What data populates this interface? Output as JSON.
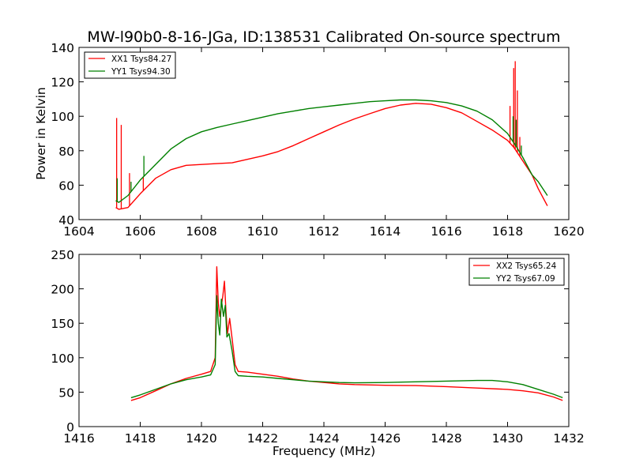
{
  "chart_data": [
    {
      "type": "line",
      "title": "MW-l90b0-8-16-JGa, ID:138531 Calibrated On-source spectrum",
      "xlabel": "",
      "ylabel": "Power in Kelvin",
      "xlim": [
        1604,
        1620
      ],
      "ylim": [
        40,
        140
      ],
      "x_ticks": [
        "1604",
        "1606",
        "1608",
        "1610",
        "1612",
        "1614",
        "1616",
        "1618",
        "1620"
      ],
      "y_ticks": [
        "40",
        "60",
        "80",
        "100",
        "120",
        "140"
      ],
      "grid": false,
      "legend_position": "top-left",
      "series": [
        {
          "name": "XX1 Tsys84.27",
          "color": "#ff0000",
          "points": [
            [
              1605.2,
              47
            ],
            [
              1605.3,
              46
            ],
            [
              1605.6,
              47
            ],
            [
              1606.0,
              55
            ],
            [
              1606.5,
              64
            ],
            [
              1607.0,
              69
            ],
            [
              1607.5,
              71.5
            ],
            [
              1608.0,
              72
            ],
            [
              1608.5,
              72.5
            ],
            [
              1609.0,
              73
            ],
            [
              1609.5,
              75
            ],
            [
              1610.0,
              77
            ],
            [
              1610.5,
              79.5
            ],
            [
              1611.0,
              83
            ],
            [
              1611.5,
              87
            ],
            [
              1612.0,
              91
            ],
            [
              1612.5,
              95
            ],
            [
              1613.0,
              98.5
            ],
            [
              1613.5,
              101.5
            ],
            [
              1614.0,
              104.5
            ],
            [
              1614.5,
              106.5
            ],
            [
              1615.0,
              107.5
            ],
            [
              1615.5,
              107
            ],
            [
              1616.0,
              105
            ],
            [
              1616.5,
              102
            ],
            [
              1617.0,
              97
            ],
            [
              1617.5,
              92
            ],
            [
              1618.0,
              86
            ],
            [
              1618.2,
              82
            ],
            [
              1618.5,
              74
            ],
            [
              1618.8,
              66
            ],
            [
              1619.0,
              58
            ],
            [
              1619.3,
              48
            ]
          ],
          "spikes": [
            [
              1605.23,
              99
            ],
            [
              1605.38,
              95
            ],
            [
              1605.65,
              67
            ],
            [
              1606.1,
              65
            ],
            [
              1618.08,
              106
            ],
            [
              1618.2,
              128
            ],
            [
              1618.25,
              132
            ],
            [
              1618.32,
              115
            ],
            [
              1618.4,
              88
            ]
          ]
        },
        {
          "name": "YY1 Tsys94.30",
          "color": "#008000",
          "points": [
            [
              1605.2,
              51
            ],
            [
              1605.3,
              50
            ],
            [
              1605.6,
              54
            ],
            [
              1606.0,
              63
            ],
            [
              1606.5,
              72
            ],
            [
              1607.0,
              81
            ],
            [
              1607.5,
              87
            ],
            [
              1608.0,
              91
            ],
            [
              1608.5,
              93.5
            ],
            [
              1609.0,
              95.5
            ],
            [
              1609.5,
              97.5
            ],
            [
              1610.0,
              99.5
            ],
            [
              1610.5,
              101.5
            ],
            [
              1611.0,
              103
            ],
            [
              1611.5,
              104.5
            ],
            [
              1612.0,
              105.5
            ],
            [
              1612.5,
              106.5
            ],
            [
              1613.0,
              107.5
            ],
            [
              1613.5,
              108.5
            ],
            [
              1614.0,
              109
            ],
            [
              1614.5,
              109.5
            ],
            [
              1615.0,
              109.5
            ],
            [
              1615.5,
              109
            ],
            [
              1616.0,
              108
            ],
            [
              1616.5,
              106
            ],
            [
              1617.0,
              103
            ],
            [
              1617.5,
              98
            ],
            [
              1618.0,
              90
            ],
            [
              1618.3,
              82
            ],
            [
              1618.5,
              76
            ],
            [
              1618.8,
              66
            ],
            [
              1619.0,
              62
            ],
            [
              1619.3,
              54
            ]
          ],
          "spikes": [
            [
              1605.25,
              64
            ],
            [
              1605.7,
              62
            ],
            [
              1606.12,
              77
            ],
            [
              1618.18,
              100
            ],
            [
              1618.28,
              98
            ],
            [
              1618.45,
              83
            ]
          ]
        }
      ]
    },
    {
      "type": "line",
      "title": "",
      "xlabel": "Frequency (MHz)",
      "ylabel": "",
      "xlim": [
        1416,
        1432
      ],
      "ylim": [
        0,
        250
      ],
      "x_ticks": [
        "1416",
        "1418",
        "1420",
        "1422",
        "1424",
        "1426",
        "1428",
        "1430",
        "1432"
      ],
      "y_ticks": [
        "0",
        "50",
        "100",
        "150",
        "200",
        "250"
      ],
      "grid": false,
      "legend_position": "top-right",
      "series": [
        {
          "name": "XX2 Tsys65.24",
          "color": "#ff0000",
          "points": [
            [
              1417.7,
              38
            ],
            [
              1418.0,
              42
            ],
            [
              1418.5,
              52
            ],
            [
              1419.0,
              62
            ],
            [
              1419.5,
              70
            ],
            [
              1420.0,
              76
            ],
            [
              1420.3,
              80
            ],
            [
              1420.45,
              100
            ],
            [
              1420.5,
              232
            ],
            [
              1420.55,
              180
            ],
            [
              1420.6,
              160
            ],
            [
              1420.7,
              190
            ],
            [
              1420.75,
              211
            ],
            [
              1420.8,
              168
            ],
            [
              1420.85,
              135
            ],
            [
              1420.92,
              157
            ],
            [
              1421.0,
              128
            ],
            [
              1421.1,
              90
            ],
            [
              1421.2,
              80
            ],
            [
              1421.5,
              79
            ],
            [
              1422.0,
              76
            ],
            [
              1422.5,
              73
            ],
            [
              1423.0,
              69
            ],
            [
              1423.5,
              66
            ],
            [
              1424.0,
              64
            ],
            [
              1424.5,
              62
            ],
            [
              1425.0,
              61
            ],
            [
              1426.0,
              60
            ],
            [
              1427.0,
              59.5
            ],
            [
              1428.0,
              58
            ],
            [
              1429.0,
              56
            ],
            [
              1430.0,
              54
            ],
            [
              1430.5,
              52
            ],
            [
              1431.0,
              49
            ],
            [
              1431.5,
              43
            ],
            [
              1431.8,
              38
            ]
          ]
        },
        {
          "name": "YY2 Tsys67.09",
          "color": "#008000",
          "points": [
            [
              1417.7,
              42
            ],
            [
              1418.0,
              46
            ],
            [
              1418.5,
              54
            ],
            [
              1419.0,
              62
            ],
            [
              1419.5,
              68
            ],
            [
              1420.0,
              72
            ],
            [
              1420.3,
              75
            ],
            [
              1420.45,
              90
            ],
            [
              1420.5,
              190
            ],
            [
              1420.55,
              150
            ],
            [
              1420.6,
              133
            ],
            [
              1420.65,
              185
            ],
            [
              1420.72,
              160
            ],
            [
              1420.78,
              176
            ],
            [
              1420.83,
              130
            ],
            [
              1420.9,
              135
            ],
            [
              1421.0,
              110
            ],
            [
              1421.1,
              80
            ],
            [
              1421.2,
              74
            ],
            [
              1421.5,
              73
            ],
            [
              1422.0,
              72
            ],
            [
              1422.5,
              70
            ],
            [
              1423.0,
              68
            ],
            [
              1423.5,
              66
            ],
            [
              1424.0,
              65
            ],
            [
              1424.5,
              64
            ],
            [
              1425.0,
              63.5
            ],
            [
              1426.0,
              64
            ],
            [
              1427.0,
              65
            ],
            [
              1428.0,
              66
            ],
            [
              1429.0,
              67
            ],
            [
              1429.5,
              67
            ],
            [
              1430.0,
              65
            ],
            [
              1430.5,
              61
            ],
            [
              1431.0,
              54
            ],
            [
              1431.5,
              47
            ],
            [
              1431.8,
              42
            ]
          ]
        }
      ]
    }
  ]
}
